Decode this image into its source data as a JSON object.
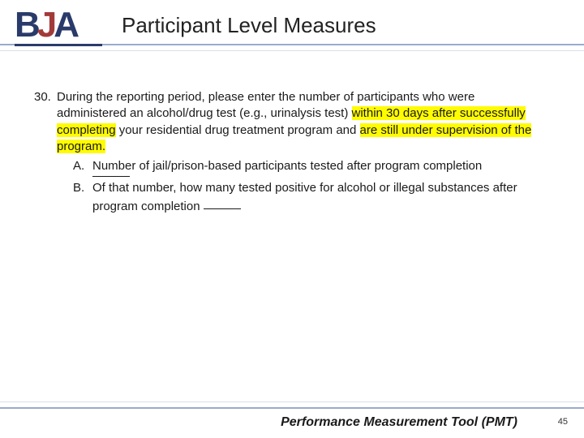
{
  "header": {
    "logo": {
      "b": "B",
      "j": "J",
      "a": "A"
    },
    "title": "Participant Level Measures"
  },
  "question": {
    "number": "30.",
    "stem_part1": "During the reporting period, please enter the number of participants who were administered an alcohol/drug test (e.g., urinalysis test) ",
    "hl1": "within 30 days after successfully completing",
    "stem_part2": " your residential drug treatment program and ",
    "hl2": "are still under supervision of the program.",
    "subA": {
      "label": "A.",
      "text": "Number of jail/prison-based participants tested after program completion"
    },
    "subB": {
      "label": "B.",
      "text": "Of that number, how many tested positive for alcohol or illegal substances after program completion "
    }
  },
  "footer": {
    "text": "Performance Measurement Tool (PMT)",
    "page": "45"
  }
}
